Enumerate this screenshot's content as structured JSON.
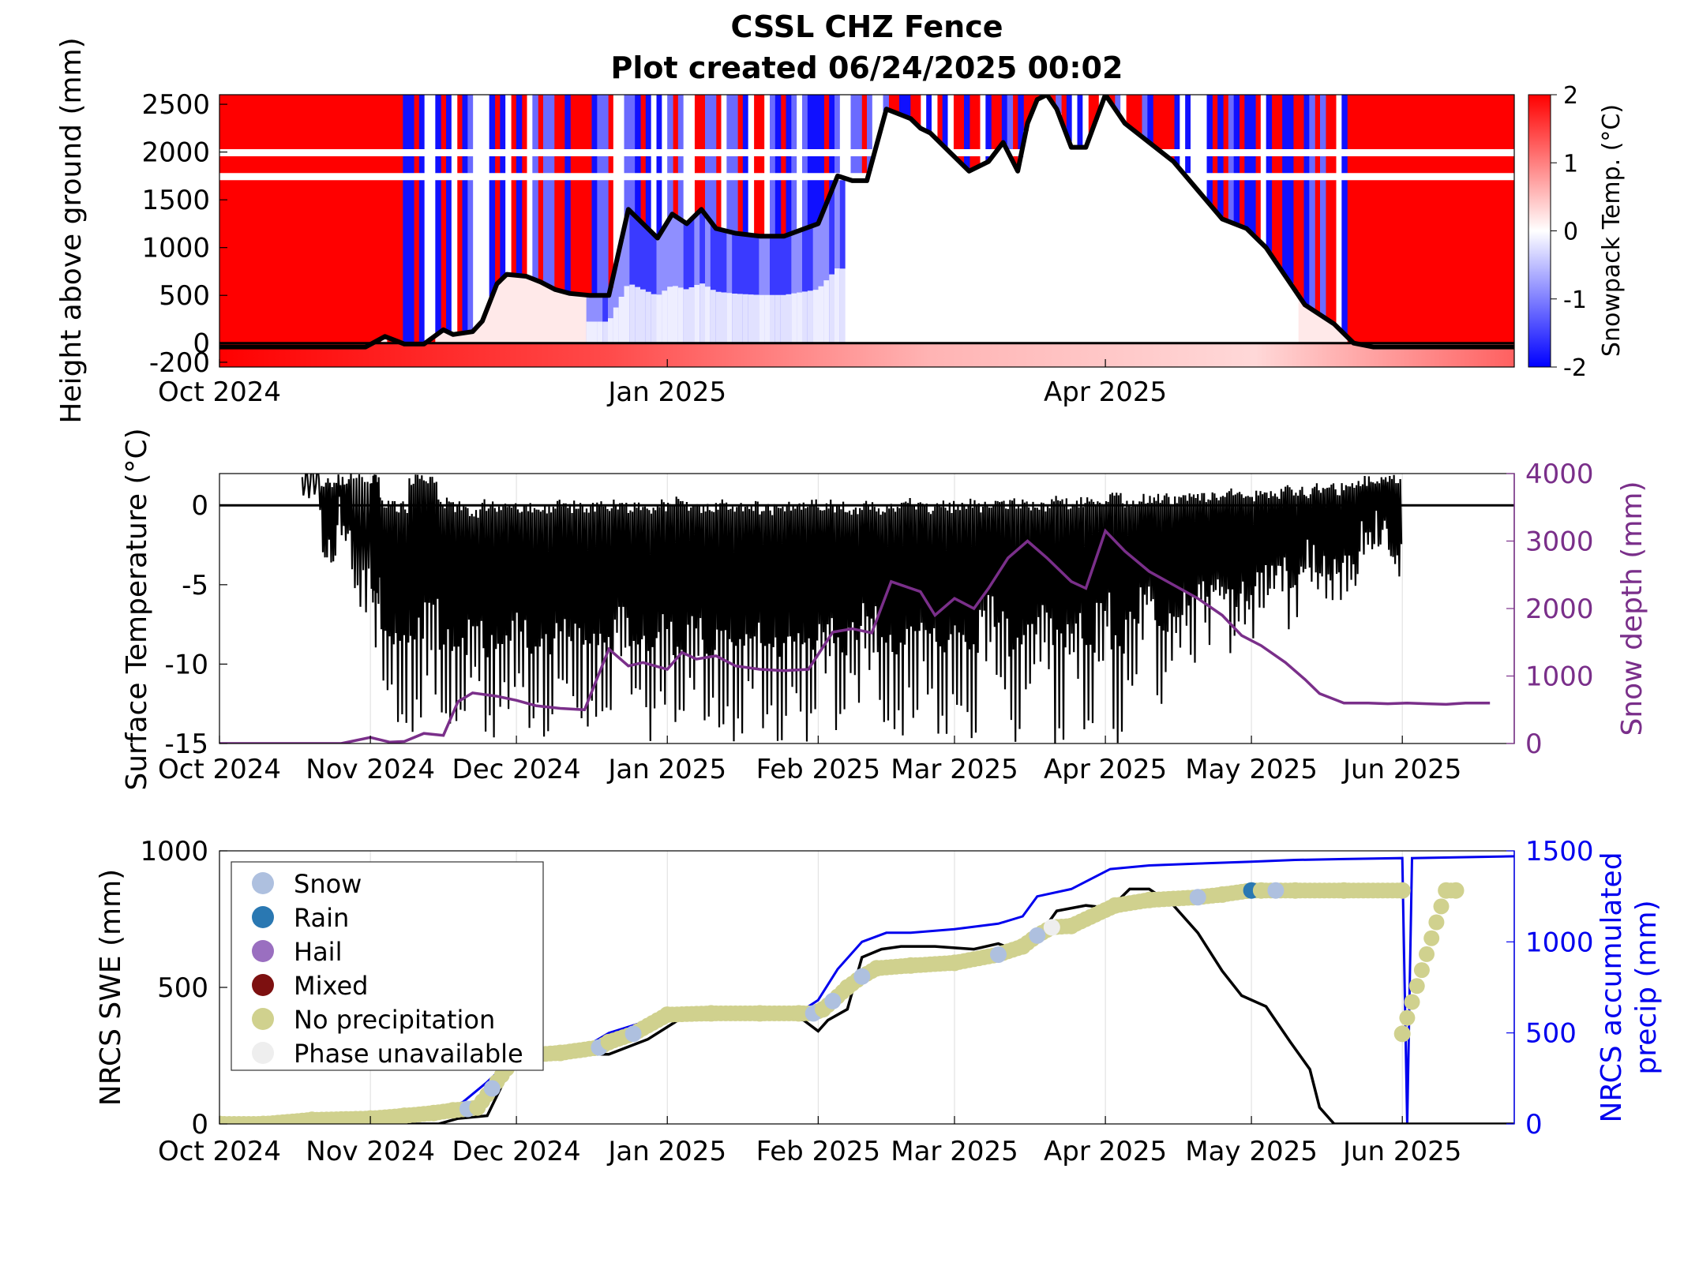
{
  "title": "CSSL CHZ Fence",
  "subtitle": "Plot created 06/24/2025 00:02",
  "colors": {
    "cold": "#0000ff",
    "warm": "#ff0000",
    "snow_depth": "#7a2f8a",
    "accum_precip": "#0000ee",
    "swe": "#000000",
    "surface_temp": "#000000"
  },
  "chart_data": [
    {
      "type": "heatmap",
      "panel": "snowpack",
      "ylabel": "Height above ground (mm)",
      "colorbar_label": "Snowpack Temp. (°C)",
      "colorbar_ticks": [
        "2",
        "1",
        "0",
        "-1",
        "-2"
      ],
      "clim": [
        -2,
        2
      ],
      "ylim": [
        -250,
        2600
      ],
      "y_ticks": [
        "2500",
        "2000",
        "1500",
        "1000",
        "500",
        "0",
        "-200"
      ],
      "x_ticks": [
        "Oct 2024",
        "Jan 2025",
        "Apr 2025"
      ],
      "xlim": [
        "2024-10-01",
        "2025-06-24"
      ],
      "snow_depth_line": {
        "x": [
          "2024-10-01",
          "2024-10-31",
          "2024-11-04",
          "2024-11-08",
          "2024-11-12",
          "2024-11-16",
          "2024-11-18",
          "2024-11-22",
          "2024-11-24",
          "2024-11-27",
          "2024-11-29",
          "2024-12-03",
          "2024-12-06",
          "2024-12-09",
          "2024-12-12",
          "2024-12-16",
          "2024-12-20",
          "2024-12-24",
          "2024-12-26",
          "2024-12-28",
          "2024-12-30",
          "2025-01-02",
          "2025-01-05",
          "2025-01-08",
          "2025-01-11",
          "2025-01-15",
          "2025-01-20",
          "2025-01-25",
          "2025-02-01",
          "2025-02-05",
          "2025-02-08",
          "2025-02-11",
          "2025-02-15",
          "2025-02-20",
          "2025-02-22",
          "2025-02-24",
          "2025-02-28",
          "2025-03-04",
          "2025-03-08",
          "2025-03-11",
          "2025-03-14",
          "2025-03-16",
          "2025-03-18",
          "2025-03-20",
          "2025-03-22",
          "2025-03-25",
          "2025-03-28",
          "2025-04-01",
          "2025-04-05",
          "2025-04-10",
          "2025-04-15",
          "2025-04-20",
          "2025-04-25",
          "2025-04-30",
          "2025-05-04",
          "2025-05-08",
          "2025-05-12",
          "2025-05-18",
          "2025-05-22",
          "2025-05-26",
          "2025-05-29",
          "2025-06-01",
          "2025-06-24"
        ],
        "y": [
          -40,
          -40,
          70,
          -10,
          -10,
          140,
          90,
          120,
          230,
          620,
          720,
          700,
          640,
          560,
          520,
          500,
          500,
          1400,
          1300,
          1200,
          1100,
          1350,
          1250,
          1400,
          1200,
          1150,
          1120,
          1120,
          1250,
          1750,
          1700,
          1700,
          2450,
          2350,
          2250,
          2200,
          2000,
          1800,
          1900,
          2100,
          1800,
          2300,
          2550,
          2600,
          2450,
          2050,
          2050,
          2600,
          2300,
          2100,
          1900,
          1600,
          1300,
          1200,
          1000,
          700,
          400,
          200,
          0,
          -40,
          -40,
          -40,
          -40
        ]
      },
      "zero_line": 0
    },
    {
      "type": "line",
      "panel": "surface",
      "ylabel": "Surface Temperature (°C)",
      "ylabel_right": "Snow depth (mm)",
      "ylim": [
        -15,
        2
      ],
      "ylim_right": [
        0,
        4000
      ],
      "y_ticks": [
        "0",
        "-5",
        "-10",
        "-15"
      ],
      "y_ticks_right": [
        "4000",
        "3000",
        "2000",
        "1000",
        "0"
      ],
      "x_ticks": [
        "Oct 2024",
        "Nov 2024",
        "Dec 2024",
        "Jan 2025",
        "Feb 2025",
        "Mar 2025",
        "Apr 2025",
        "May 2025",
        "Jun 2025"
      ],
      "xlim": [
        "2024-10-01",
        "2025-06-24"
      ],
      "series": [
        {
          "name": "Snow depth (mm)",
          "axis": "right",
          "x": [
            "2024-10-01",
            "2024-10-26",
            "2024-11-01",
            "2024-11-05",
            "2024-11-08",
            "2024-11-12",
            "2024-11-16",
            "2024-11-19",
            "2024-11-22",
            "2024-11-27",
            "2024-12-01",
            "2024-12-05",
            "2024-12-10",
            "2024-12-15",
            "2024-12-20",
            "2024-12-24",
            "2024-12-27",
            "2025-01-01",
            "2025-01-04",
            "2025-01-07",
            "2025-01-11",
            "2025-01-15",
            "2025-01-20",
            "2025-01-25",
            "2025-01-30",
            "2025-02-04",
            "2025-02-08",
            "2025-02-12",
            "2025-02-16",
            "2025-02-20",
            "2025-02-22",
            "2025-02-25",
            "2025-03-01",
            "2025-03-05",
            "2025-03-08",
            "2025-03-12",
            "2025-03-16",
            "2025-03-20",
            "2025-03-25",
            "2025-03-28",
            "2025-04-01",
            "2025-04-05",
            "2025-04-10",
            "2025-04-15",
            "2025-04-20",
            "2025-04-25",
            "2025-04-29",
            "2025-05-03",
            "2025-05-08",
            "2025-05-12",
            "2025-05-15",
            "2025-05-20",
            "2025-05-25",
            "2025-05-29",
            "2025-06-02",
            "2025-06-06",
            "2025-06-10",
            "2025-06-14",
            "2025-06-19"
          ],
          "values": [
            0,
            0,
            90,
            20,
            30,
            150,
            120,
            620,
            750,
            700,
            640,
            560,
            520,
            500,
            1400,
            1150,
            1200,
            1100,
            1350,
            1250,
            1300,
            1150,
            1100,
            1080,
            1100,
            1650,
            1700,
            1640,
            2400,
            2300,
            2250,
            1900,
            2150,
            2000,
            2300,
            2750,
            3000,
            2750,
            2400,
            2300,
            3150,
            2850,
            2550,
            2350,
            2150,
            1900,
            1600,
            1450,
            1200,
            950,
            740,
            600,
            600,
            590,
            600,
            590,
            580,
            600,
            600
          ]
        },
        {
          "name": "Surface Temperature (°C)",
          "axis": "left",
          "style": "dense oscillation",
          "x": [
            "2024-10-18",
            "2024-10-22",
            "2024-10-25",
            "2024-10-28",
            "2024-11-01",
            "2024-11-03",
            "2024-11-06",
            "2024-11-09",
            "2024-11-12",
            "2024-11-15",
            "2024-11-18",
            "2024-11-21",
            "2024-11-24",
            "2024-11-27",
            "2024-11-30",
            "2024-12-03",
            "2024-12-06",
            "2024-12-09",
            "2024-12-12",
            "2024-12-15",
            "2024-12-18",
            "2024-12-21",
            "2024-12-24",
            "2024-12-27",
            "2024-12-30",
            "2025-01-02",
            "2025-01-05",
            "2025-01-08",
            "2025-01-11",
            "2025-01-14",
            "2025-01-17",
            "2025-01-20",
            "2025-01-23",
            "2025-01-26",
            "2025-01-29",
            "2025-02-01",
            "2025-02-04",
            "2025-02-07",
            "2025-02-10",
            "2025-02-13",
            "2025-02-16",
            "2025-02-19",
            "2025-02-22",
            "2025-02-25",
            "2025-02-28",
            "2025-03-03",
            "2025-03-06",
            "2025-03-09",
            "2025-03-12",
            "2025-03-15",
            "2025-03-18",
            "2025-03-21",
            "2025-03-24",
            "2025-03-27",
            "2025-03-30",
            "2025-04-02",
            "2025-04-05",
            "2025-04-08",
            "2025-04-11",
            "2025-04-14",
            "2025-04-17",
            "2025-04-20",
            "2025-04-23",
            "2025-04-26",
            "2025-04-29",
            "2025-05-02",
            "2025-05-05",
            "2025-05-08",
            "2025-05-11",
            "2025-05-14",
            "2025-05-17",
            "2025-05-20",
            "2025-05-23",
            "2025-05-26",
            "2025-05-29"
          ],
          "min_values": [
            1.5,
            -5,
            -2,
            -8,
            -9,
            -14,
            -15,
            -15,
            -12,
            -15,
            -15,
            -13,
            -15,
            -14,
            -12,
            -15,
            -15,
            -13,
            -14,
            -15,
            -15,
            -11,
            -14,
            -15,
            -13,
            -15,
            -12,
            -15,
            -14,
            -15,
            -13,
            -15,
            -15,
            -14,
            -15,
            -12,
            -15,
            -13,
            -11,
            -15,
            -15,
            -14,
            -12,
            -15,
            -13,
            -15,
            -10,
            -12,
            -15,
            -13,
            -11,
            -15,
            -12,
            -15,
            -10,
            -15,
            -12,
            -9,
            -13,
            -11,
            -10,
            -9,
            -8,
            -10,
            -9,
            -7,
            -6,
            -8,
            -5,
            -6,
            -7,
            -6,
            -4,
            -3,
            -5
          ],
          "max_values": [
            2,
            1.8,
            2,
            2,
            2,
            0.5,
            0.3,
            2,
            2,
            0.5,
            0.3,
            0,
            0.4,
            0.3,
            0.2,
            0.3,
            0.2,
            0.4,
            0.3,
            0.2,
            0.3,
            0.5,
            0.3,
            0.2,
            0.4,
            0.6,
            0.3,
            0.2,
            0.4,
            0.2,
            0.3,
            0.1,
            0.2,
            0.3,
            0.5,
            0.4,
            0.3,
            0.2,
            0.4,
            0.2,
            0.3,
            0.5,
            0.2,
            0.4,
            0.3,
            0.5,
            0.3,
            0.4,
            0.5,
            0.4,
            0.3,
            0.6,
            0.5,
            0.7,
            0.5,
            0.9,
            0.6,
            0.8,
            0.9,
            0.7,
            0.8,
            1.0,
            0.9,
            1.1,
            1.0,
            1.2,
            1.1,
            1.4,
            1.2,
            1.5,
            1.4,
            1.6,
            2,
            2,
            2
          ]
        }
      ],
      "zero_line": 0
    },
    {
      "type": "scatter",
      "panel": "swe",
      "ylabel": "NRCS SWE (mm)",
      "ylabel_right": "NRCS accumulated precip (mm)",
      "ylim": [
        0,
        1000
      ],
      "ylim_right": [
        0,
        1500
      ],
      "y_ticks": [
        "1000",
        "500",
        "0"
      ],
      "y_ticks_right": [
        "1500",
        "1000",
        "500",
        "0"
      ],
      "x_ticks": [
        "Oct 2024",
        "Nov 2024",
        "Dec 2024",
        "Jan 2025",
        "Feb 2025",
        "Mar 2025",
        "Apr 2025",
        "May 2025",
        "Jun 2025"
      ],
      "xlim": [
        "2024-10-01",
        "2025-06-24"
      ],
      "legend": {
        "placement": "top-left",
        "entries": [
          {
            "label": "Snow",
            "color": "#aec0df"
          },
          {
            "label": "Rain",
            "color": "#2a78b2"
          },
          {
            "label": "Hail",
            "color": "#9a6fc0"
          },
          {
            "label": "Mixed",
            "color": "#7d1010"
          },
          {
            "label": "No precipitation",
            "color": "#d0d18e"
          },
          {
            "label": "Phase unavailable",
            "color": "#eeeeee"
          }
        ]
      },
      "swe_line": {
        "name": "NRCS SWE (mm)",
        "x": [
          "2024-10-01",
          "2024-11-15",
          "2024-11-19",
          "2024-11-25",
          "2024-12-01",
          "2024-12-10",
          "2024-12-20",
          "2024-12-28",
          "2025-01-05",
          "2025-01-15",
          "2025-01-25",
          "2025-01-29",
          "2025-02-01",
          "2025-02-03",
          "2025-02-07",
          "2025-02-10",
          "2025-02-14",
          "2025-02-18",
          "2025-02-25",
          "2025-03-05",
          "2025-03-10",
          "2025-03-13",
          "2025-03-18",
          "2025-03-22",
          "2025-03-28",
          "2025-04-02",
          "2025-04-06",
          "2025-04-10",
          "2025-04-15",
          "2025-04-20",
          "2025-04-25",
          "2025-04-29",
          "2025-05-04",
          "2025-05-09",
          "2025-05-13",
          "2025-05-15",
          "2025-05-18",
          "2025-06-24"
        ],
        "values": [
          0,
          0,
          20,
          30,
          250,
          255,
          255,
          310,
          400,
          400,
          395,
          380,
          340,
          380,
          420,
          610,
          640,
          650,
          650,
          640,
          660,
          640,
          680,
          780,
          800,
          790,
          860,
          860,
          800,
          700,
          560,
          470,
          430,
          300,
          200,
          60,
          0,
          0
        ]
      },
      "accum_precip_line": {
        "name": "NRCS accumulated precip (mm)",
        "x": [
          "2024-10-01",
          "2024-11-01",
          "2024-11-15",
          "2024-11-20",
          "2024-11-25",
          "2024-12-01",
          "2024-12-15",
          "2024-12-20",
          "2025-01-01",
          "2025-01-10",
          "2025-01-28",
          "2025-02-01",
          "2025-02-05",
          "2025-02-10",
          "2025-02-15",
          "2025-02-20",
          "2025-03-01",
          "2025-03-10",
          "2025-03-15",
          "2025-03-18",
          "2025-03-25",
          "2025-04-02",
          "2025-04-10",
          "2025-04-20",
          "2025-05-01",
          "2025-05-10",
          "2025-05-20",
          "2025-06-01",
          "2025-06-02",
          "2025-06-03",
          "2025-06-24"
        ],
        "values": [
          0,
          30,
          60,
          120,
          230,
          380,
          420,
          500,
          600,
          610,
          610,
          680,
          850,
          1000,
          1050,
          1050,
          1070,
          1100,
          1140,
          1250,
          1290,
          1400,
          1420,
          1430,
          1440,
          1450,
          1455,
          1460,
          0,
          1460,
          1470
        ]
      },
      "phase_points": {
        "x": [
          "2024-10-01",
          "2024-10-10",
          "2024-10-20",
          "2024-11-01",
          "2024-11-08",
          "2024-11-14",
          "2024-11-18",
          "2024-11-21",
          "2024-11-23",
          "2024-11-26",
          "2024-12-01",
          "2024-12-10",
          "2024-12-18",
          "2024-12-20",
          "2024-12-25",
          "2025-01-01",
          "2025-01-10",
          "2025-01-20",
          "2025-01-28",
          "2025-01-31",
          "2025-02-02",
          "2025-02-04",
          "2025-02-07",
          "2025-02-10",
          "2025-02-13",
          "2025-02-20",
          "2025-03-01",
          "2025-03-10",
          "2025-03-15",
          "2025-03-18",
          "2025-03-21",
          "2025-03-25",
          "2025-04-03",
          "2025-04-10",
          "2025-04-20",
          "2025-04-25",
          "2025-05-01",
          "2025-05-03",
          "2025-05-06",
          "2025-05-10",
          "2025-05-20",
          "2025-06-01",
          "2025-06-01",
          "2025-06-10",
          "2025-06-12"
        ],
        "values": [
          0,
          0,
          15,
          20,
          30,
          40,
          50,
          55,
          60,
          130,
          250,
          260,
          280,
          300,
          330,
          400,
          405,
          405,
          405,
          405,
          420,
          450,
          500,
          540,
          570,
          580,
          590,
          620,
          650,
          690,
          720,
          725,
          800,
          820,
          830,
          840,
          855,
          855,
          855,
          855,
          855,
          855,
          330,
          855,
          855
        ],
        "phases": [
          "No precipitation",
          "No precipitation",
          "No precipitation",
          "No precipitation",
          "No precipitation",
          "No precipitation",
          "No precipitation",
          "Snow",
          "No precipitation",
          "Snow",
          "No precipitation",
          "No precipitation",
          "Snow",
          "No precipitation",
          "Snow",
          "No precipitation",
          "No precipitation",
          "No precipitation",
          "No precipitation",
          "Snow",
          "No precipitation",
          "Snow",
          "No precipitation",
          "Snow",
          "No precipitation",
          "No precipitation",
          "No precipitation",
          "Snow",
          "No precipitation",
          "Snow",
          "Phase unavailable",
          "No precipitation",
          "No precipitation",
          "No precipitation",
          "Snow",
          "No precipitation",
          "Rain",
          "No precipitation",
          "Snow",
          "No precipitation",
          "No precipitation",
          "No precipitation",
          "No precipitation",
          "No precipitation",
          "No precipitation"
        ]
      }
    }
  ]
}
